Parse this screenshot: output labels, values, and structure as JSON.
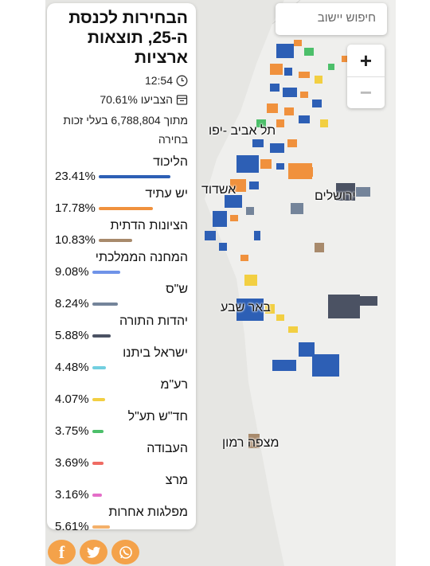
{
  "panel": {
    "title": "הבחירות לכנסת ה-25, תוצאות ארציות",
    "time": "12:54",
    "turnout": "הצביעו 70.61%",
    "eligible": "מתוך 6,788,804 בעלי זכות בחירה"
  },
  "parties": [
    {
      "name": "הליכוד",
      "pct": "23.41%",
      "color": "#2d5fb5",
      "share": 0.2341
    },
    {
      "name": "יש עתיד",
      "pct": "17.78%",
      "color": "#f0913d",
      "share": 0.1778
    },
    {
      "name": "הציונות הדתית",
      "pct": "10.83%",
      "color": "#a88a6c",
      "share": 0.1083
    },
    {
      "name": "המחנה הממלכתי",
      "pct": "9.08%",
      "color": "#6f93e8",
      "share": 0.0908
    },
    {
      "name": "ש\"ס",
      "pct": "8.24%",
      "color": "#74849a",
      "share": 0.0824
    },
    {
      "name": "יהדות התורה",
      "pct": "5.88%",
      "color": "#4b5263",
      "share": 0.0588
    },
    {
      "name": "ישראל ביתנו",
      "pct": "4.48%",
      "color": "#72cfe0",
      "share": 0.0448
    },
    {
      "name": "רע\"מ",
      "pct": "4.07%",
      "color": "#f2cf42",
      "share": 0.0407
    },
    {
      "name": "חד\"ש תע\"ל",
      "pct": "3.75%",
      "color": "#4cbf6a",
      "share": 0.0375
    },
    {
      "name": "העבודה",
      "pct": "3.69%",
      "color": "#ef6b63",
      "share": 0.0369
    },
    {
      "name": "מרצ",
      "pct": "3.16%",
      "color": "#e46ec8",
      "share": 0.0316
    },
    {
      "name": "מפלגות אחרות",
      "pct": "5.61%",
      "color": "#f4b06a",
      "share": 0.0561
    }
  ],
  "search": {
    "placeholder": "חיפוש יישוב"
  },
  "zoom": {
    "in": "+",
    "out": "−"
  },
  "cities": {
    "telaviv": "תל אביב -יפו",
    "ashdod": "אשדוד",
    "jerusalem": "ירושלים",
    "beersheba": "באר שבע",
    "mitzperamon": "מצפה רמון"
  },
  "share": {
    "facebook": "f",
    "twitter": "twitter-icon",
    "whatsapp": "whatsapp-icon"
  }
}
